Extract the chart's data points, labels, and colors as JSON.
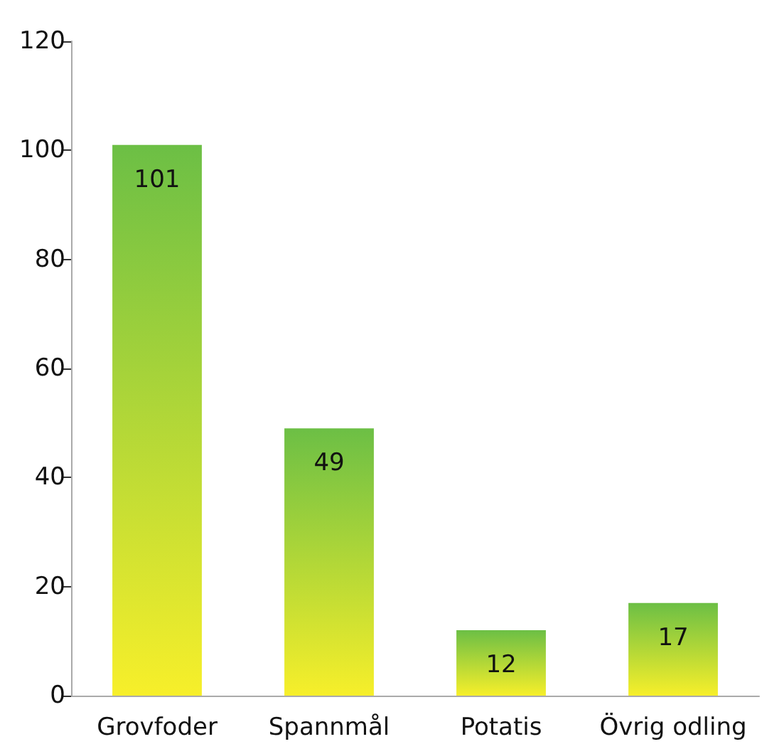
{
  "chart_data": {
    "type": "bar",
    "categories": [
      "Grovfoder",
      "Spannmål",
      "Potatis",
      "Övrig odling"
    ],
    "values": [
      101,
      49,
      12,
      17
    ],
    "color": "#6cbf45",
    "ylim": [
      0,
      120
    ],
    "yticks": [
      0,
      20,
      40,
      60,
      80,
      100,
      120
    ],
    "grid": false,
    "data_labels": true
  }
}
